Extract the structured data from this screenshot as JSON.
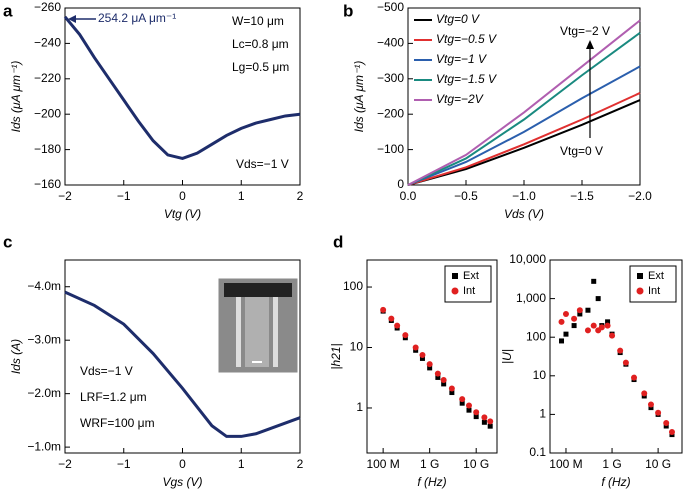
{
  "chart_data": [
    {
      "type": "line",
      "panel_label": "a",
      "xlabel": "Vtg (V)",
      "ylabel": "Ids (μA μm⁻¹)",
      "x": [
        -2,
        -1.75,
        -1.5,
        -1.25,
        -1,
        -0.75,
        -0.5,
        -0.25,
        0,
        0.25,
        0.5,
        0.75,
        1,
        1.25,
        1.5,
        1.75,
        2
      ],
      "values": [
        -255,
        -245,
        -232,
        -220,
        -208,
        -196,
        -185,
        -177,
        -175,
        -178,
        -183,
        -188,
        -192,
        -195,
        -197,
        -199,
        -200
      ],
      "color": "#1e2d6b",
      "xlim": [
        -2,
        2
      ],
      "ylim": [
        -160,
        -260
      ],
      "xticks": [
        {
          "value": -2,
          "label": "−2"
        },
        {
          "value": -1,
          "label": "−1"
        },
        0,
        1,
        2
      ],
      "yticks": [
        {
          "value": -260,
          "label": "−260"
        },
        {
          "value": -240,
          "label": "−240"
        },
        {
          "value": -220,
          "label": "−220"
        },
        {
          "value": -200,
          "label": "−200"
        },
        {
          "value": -180,
          "label": "−180"
        },
        {
          "value": -160,
          "label": "−160"
        }
      ],
      "annotations": [
        "254.2 μA μm⁻¹",
        "W=10 μm",
        "Lc=0.8 μm",
        "Lg=0.5 μm",
        "Vds=−1 V"
      ]
    },
    {
      "type": "line",
      "panel_label": "b",
      "xlabel": "Vds (V)",
      "ylabel": "Ids (μA μm⁻¹)",
      "x": [
        0,
        -0.5,
        -1,
        -1.5,
        -2
      ],
      "series": [
        {
          "name": "Vtg=0 V",
          "color": "#000000",
          "values": [
            0,
            -45,
            -105,
            -170,
            -240
          ]
        },
        {
          "name": "Vtg=−0.5 V",
          "color": "#e03030",
          "values": [
            0,
            -50,
            -115,
            -185,
            -260
          ]
        },
        {
          "name": "Vtg=−1 V",
          "color": "#2b5fad",
          "values": [
            0,
            -65,
            -150,
            -245,
            -335
          ]
        },
        {
          "name": "Vtg=−1.5 V",
          "color": "#1a8a80",
          "values": [
            0,
            -75,
            -185,
            -310,
            -430
          ]
        },
        {
          "name": "Vtg=−2V",
          "color": "#b05fb0",
          "values": [
            0,
            -85,
            -205,
            -335,
            -465
          ]
        }
      ],
      "legend": "upper left",
      "xlim": [
        0,
        -2
      ],
      "ylim": [
        0,
        -500
      ],
      "xticks": [
        {
          "value": 0,
          "label": "0.0"
        },
        {
          "value": -0.5,
          "label": "−0.5"
        },
        {
          "value": -1,
          "label": "−1.0"
        },
        {
          "value": -1.5,
          "label": "−1.5"
        },
        {
          "value": -2,
          "label": "−2.0"
        }
      ],
      "yticks": [
        0,
        {
          "value": -100,
          "label": "−100"
        },
        {
          "value": -200,
          "label": "−200"
        },
        {
          "value": -300,
          "label": "−300"
        },
        {
          "value": -400,
          "label": "−400"
        },
        {
          "value": -500,
          "label": "−500"
        }
      ],
      "annotations": [
        "Vtg=−2 V",
        "Vtg=0 V"
      ]
    },
    {
      "type": "line",
      "panel_label": "c",
      "xlabel": "Vgs (V)",
      "ylabel": "Ids (A)",
      "x": [
        -2,
        -1.5,
        -1,
        -0.5,
        0,
        0.25,
        0.5,
        0.75,
        1,
        1.25,
        1.5,
        2
      ],
      "values": [
        -0.0039,
        -0.00365,
        -0.0033,
        -0.00275,
        -0.0021,
        -0.00175,
        -0.0014,
        -0.0012,
        -0.0012,
        -0.00125,
        -0.00135,
        -0.00155
      ],
      "color": "#1e2d6b",
      "xlim": [
        -2,
        2
      ],
      "ylim": [
        -0.00089,
        -0.0045
      ],
      "xticks": [
        {
          "value": -2,
          "label": "−2"
        },
        {
          "value": -1,
          "label": "−1"
        },
        0,
        1,
        2
      ],
      "yticks": [
        {
          "value": -0.004,
          "label": "−4.0m"
        },
        {
          "value": -0.003,
          "label": "−3.0m"
        },
        {
          "value": -0.002,
          "label": "−2.0m"
        },
        {
          "value": -0.001,
          "label": "−1.0m"
        }
      ],
      "annotations": [
        "Vds=−1 V",
        "LRF=1.2 μm",
        "WRF=100 μm"
      ]
    },
    {
      "type": "scatter",
      "panel_label": "d",
      "xlabel": "f (Hz)",
      "ylabel": "|h21|",
      "xscale": "log",
      "yscale": "log",
      "x": [
        100000000,
        150000000,
        200000000,
        300000000,
        500000000,
        700000000,
        1000000000,
        1500000000,
        2000000000,
        3000000000,
        5000000000,
        7000000000,
        10000000000,
        15000000000,
        20000000000
      ],
      "series": [
        {
          "name": "Ext",
          "color": "#000000",
          "marker": "square",
          "values": [
            40,
            28,
            21,
            14.5,
            9,
            6.6,
            4.6,
            3.2,
            2.5,
            1.8,
            1.2,
            0.92,
            0.72,
            0.58,
            0.5
          ]
        },
        {
          "name": "Int",
          "color": "#e02020",
          "marker": "circle",
          "values": [
            42,
            30,
            23,
            16,
            10,
            7.5,
            5.3,
            3.7,
            2.9,
            2.1,
            1.4,
            1.1,
            0.85,
            0.7,
            0.6
          ]
        }
      ],
      "legend": "upper right",
      "xlim": [
        45000000,
        28000000000
      ],
      "ylim": [
        0.18,
        280
      ],
      "xticks": [
        {
          "value": 100000000,
          "label": "100 M"
        },
        {
          "value": 1000000000,
          "label": "1 G"
        },
        {
          "value": 10000000000,
          "label": "10 G"
        }
      ],
      "yticks": [
        1,
        10,
        100
      ]
    },
    {
      "type": "scatter",
      "xlabel": "f (Hz)",
      "ylabel": "|U|",
      "xscale": "log",
      "yscale": "log",
      "x": [
        80000000,
        100000000,
        150000000,
        200000000,
        300000000,
        400000000,
        500000000,
        600000000,
        800000000,
        1000000000,
        1500000000,
        2000000000,
        3000000000,
        5000000000,
        7000000000,
        10000000000,
        15000000000,
        20000000000
      ],
      "series": [
        {
          "name": "Ext",
          "color": "#000000",
          "marker": "square",
          "values": [
            80,
            120,
            200,
            400,
            500,
            2800,
            1000,
            200,
            250,
            120,
            40,
            20,
            8,
            3,
            1.5,
            1,
            0.5,
            0.3
          ]
        },
        {
          "name": "Int",
          "color": "#e02020",
          "marker": "circle",
          "values": [
            250,
            400,
            300,
            500,
            150,
            200,
            150,
            180,
            200,
            110,
            45,
            22,
            9,
            3.5,
            1.8,
            1.1,
            0.6,
            0.35
          ]
        }
      ],
      "legend": "upper right",
      "xlim": [
        45000000,
        33000000000
      ],
      "ylim": [
        0.1,
        10000
      ],
      "xticks": [
        {
          "value": 100000000,
          "label": "100 M"
        },
        {
          "value": 1000000000,
          "label": "1 G"
        },
        {
          "value": 10000000000,
          "label": "10 G"
        }
      ],
      "yticks": [
        0.1,
        1,
        10,
        100,
        {
          "value": 1000,
          "label": "1,000"
        },
        {
          "value": 10000,
          "label": "10,000"
        }
      ]
    }
  ]
}
